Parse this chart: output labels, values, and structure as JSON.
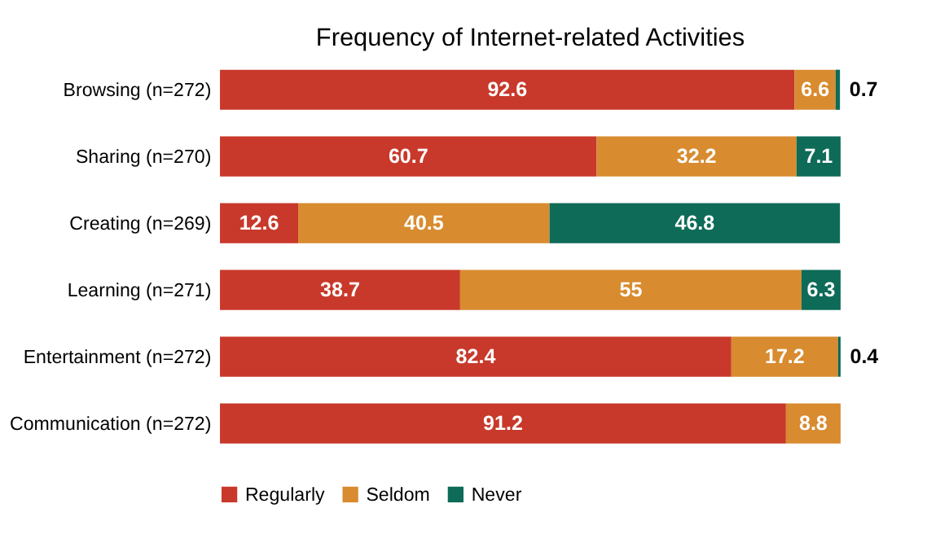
{
  "chart_data": {
    "type": "bar",
    "orientation": "horizontal",
    "stacked": true,
    "title": "Frequency of Internet-related Activities",
    "categories": [
      "Browsing (n=272)",
      "Sharing (n=270)",
      "Creating (n=269)",
      "Learning (n=271)",
      "Entertainment (n=272)",
      "Communication (n=272)"
    ],
    "series": [
      {
        "name": "Regularly",
        "color": "#c8392b",
        "values": [
          92.6,
          60.7,
          12.6,
          38.7,
          82.4,
          91.2
        ]
      },
      {
        "name": "Seldom",
        "color": "#d88b2f",
        "values": [
          6.6,
          32.2,
          40.5,
          55,
          17.2,
          8.8
        ]
      },
      {
        "name": "Never",
        "color": "#0e6b58",
        "values": [
          0.7,
          7.1,
          46.8,
          6.3,
          0.4,
          null
        ]
      }
    ],
    "data_labels": true,
    "legend": "bottom",
    "grid": false
  }
}
